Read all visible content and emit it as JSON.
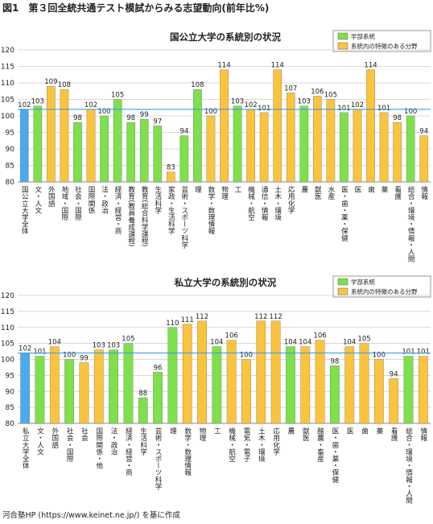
{
  "figure_title": "図1　第３回全統共通テスト模試からみる志望動向(前年比%)",
  "source": "河合塾HP (https://www.keinet.ne.jp/) を基に作成",
  "chart_data": [
    {
      "type": "bar",
      "title": "国公立大学の系統別の状況",
      "categories": [
        "国公立大学全体",
        "文・人文",
        "外国語",
        "地域・国際",
        "社会・国際",
        "国際関係",
        "法・政治",
        "経済・経営・商",
        "教育(教員養成課程)",
        "教育(総合科学課程)",
        "生活科学",
        "家政・生活科学",
        "芸術・スポーツ科学",
        "理",
        "数学・数理情報",
        "物理",
        "工",
        "機械・航空",
        "通信・情報",
        "土木・環境",
        "応用化学",
        "農",
        "獣医",
        "水産",
        "医・歯・薬・保健",
        "医",
        "歯",
        "薬",
        "看護",
        "総合・環境・情報・人間",
        "情報"
      ],
      "values": [
        102,
        103,
        109,
        108,
        98,
        102,
        100,
        105,
        98,
        99,
        97,
        83,
        94,
        108,
        100,
        114,
        103,
        102,
        101,
        114,
        107,
        103,
        106,
        105,
        101,
        102,
        114,
        101,
        98,
        100,
        94
      ],
      "colors": [
        "#4aaaf0",
        "#7ee04a",
        "#fcc43c",
        "#fcc43c",
        "#7ee04a",
        "#fcc43c",
        "#7ee04a",
        "#7ee04a",
        "#7ee04a",
        "#7ee04a",
        "#7ee04a",
        "#fcc43c",
        "#7ee04a",
        "#7ee04a",
        "#fcc43c",
        "#fcc43c",
        "#7ee04a",
        "#fcc43c",
        "#fcc43c",
        "#fcc43c",
        "#fcc43c",
        "#7ee04a",
        "#fcc43c",
        "#fcc43c",
        "#7ee04a",
        "#fcc43c",
        "#fcc43c",
        "#fcc43c",
        "#fcc43c",
        "#7ee04a",
        "#fcc43c"
      ],
      "legend": [
        {
          "name": "学部系統",
          "color": "#7ee04a"
        },
        {
          "name": "系統内の特徴のある分野",
          "color": "#fcc43c"
        }
      ],
      "ylim": [
        80,
        120
      ],
      "yticks": [
        80,
        85,
        90,
        95,
        100,
        105,
        110,
        115,
        120
      ],
      "grid": true,
      "reference_line": 102
    },
    {
      "type": "bar",
      "title": "私立大学の系統別の状況",
      "categories": [
        "私立大学全体",
        "文・人文",
        "外国語",
        "社会・国際",
        "社会",
        "国際関係・他",
        "法・政治",
        "経済・経営・商",
        "生活科学",
        "芸術・スポーツ科学",
        "理",
        "数学・数理情報",
        "物理",
        "工",
        "機械・航空",
        "電気・電子",
        "土木・環境",
        "応用化学",
        "農",
        "獣医",
        "酪農・畜産",
        "医・歯・薬・保健",
        "医",
        "歯",
        "薬",
        "看護",
        "総合・環境・情報・人間",
        "情報"
      ],
      "values": [
        102,
        101,
        104,
        100,
        99,
        103,
        103,
        105,
        88,
        96,
        110,
        111,
        112,
        104,
        106,
        100,
        112,
        112,
        104,
        104,
        106,
        98,
        104,
        105,
        100,
        94,
        101,
        101
      ],
      "colors": [
        "#4aaaf0",
        "#7ee04a",
        "#fcc43c",
        "#7ee04a",
        "#fcc43c",
        "#fcc43c",
        "#7ee04a",
        "#7ee04a",
        "#7ee04a",
        "#7ee04a",
        "#7ee04a",
        "#fcc43c",
        "#fcc43c",
        "#7ee04a",
        "#fcc43c",
        "#fcc43c",
        "#fcc43c",
        "#fcc43c",
        "#7ee04a",
        "#fcc43c",
        "#fcc43c",
        "#7ee04a",
        "#fcc43c",
        "#fcc43c",
        "#fcc43c",
        "#fcc43c",
        "#7ee04a",
        "#fcc43c"
      ],
      "legend": [
        {
          "name": "学部系統",
          "color": "#7ee04a"
        },
        {
          "name": "系統内の特徴のある分野",
          "color": "#fcc43c"
        }
      ],
      "ylim": [
        80,
        120
      ],
      "yticks": [
        80,
        85,
        90,
        95,
        100,
        105,
        110,
        115,
        120
      ],
      "grid": true,
      "reference_line": 102
    }
  ]
}
